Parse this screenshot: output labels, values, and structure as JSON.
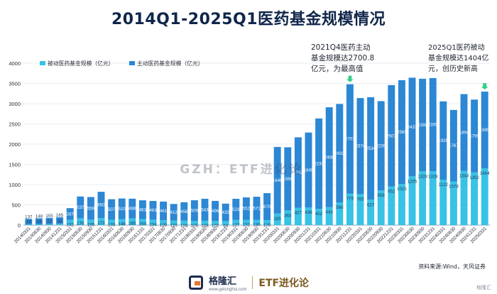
{
  "chart_data": {
    "type": "bar",
    "stacked": true,
    "title": "2014Q1-2025Q1医药基金规模情况",
    "ylim": [
      0,
      4000
    ],
    "yticks": [
      0,
      500,
      1000,
      1500,
      2000,
      2500,
      3000,
      3500,
      4000
    ],
    "legend_position": "top-left",
    "categories": [
      "20140331",
      "20140630",
      "20140930",
      "20141231",
      "20150331",
      "20150630",
      "20150930",
      "20151231",
      "20160331",
      "20160630",
      "20160930",
      "20161231",
      "20170331",
      "20170630",
      "20170930",
      "20171231",
      "20180331",
      "20180630",
      "20180930",
      "20181231",
      "20190331",
      "20190630",
      "20190930",
      "20191231",
      "20200331",
      "20200630",
      "20200930",
      "20201231",
      "20210331",
      "20210630",
      "20210930",
      "20211231",
      "20220331",
      "20220630",
      "20220930",
      "20221231",
      "20230331",
      "20230630",
      "20230930",
      "20231231",
      "20240331",
      "20240630",
      "20240930",
      "20241231",
      "20250331"
    ],
    "series": [
      {
        "name": "被动医药基金规模（亿元）",
        "color": "#38c2e6",
        "values": [
          16,
          19,
          22,
          30,
          132,
          170,
          135,
          173,
          133,
          148,
          165,
          150,
          134,
          120,
          110,
          109,
          105,
          108,
          102,
          99,
          127,
          132,
          130,
          120,
          285,
          363,
          427,
          438,
          402,
          443,
          560,
          779,
          765,
          627,
          858,
          952,
          1015,
          1205,
          1328,
          1328,
          1122,
          1078,
          1343,
          1302,
          1404
        ]
      },
      {
        "name": "主动医药基金规模（亿元）",
        "color": "#2c87d4",
        "values": [
          137,
          148,
          155,
          165,
          287,
          537,
          559,
          650,
          507,
          510,
          488,
          463,
          463,
          461,
          412,
          456,
          509,
          543,
          496,
          432,
          523,
          552,
          571,
          670,
          1646,
          1560,
          1742,
          1849,
          2233,
          2468,
          2432,
          2701,
          2374,
          2534,
          2205,
          2507,
          2565,
          2437,
          2288,
          2305,
          1935,
          1767,
          1894,
          1799,
          1895
        ]
      }
    ],
    "annotations": [
      {
        "target": "20211231",
        "text": [
          "2021Q4医药主动",
          "基金规模达2700.8",
          "亿元，为最高值"
        ]
      },
      {
        "target": "20250331",
        "text": [
          "2025Q1医药被动",
          "基金规模达1404亿",
          "元，创历史新高"
        ]
      }
    ],
    "colors": {
      "title": "#10264a",
      "axis_text": "#2b2f38",
      "grid": "#e9ecf1",
      "arrow": "#2ecf8a"
    }
  },
  "watermark": "GZH：ETF进化论",
  "source_note": "资料来源:Wind，天风证券",
  "footer": {
    "brand_cn": "格隆汇",
    "brand_domain": "www.gelonghui.com",
    "brand_etf": "ETF进化论",
    "corner": "格隆汇"
  }
}
